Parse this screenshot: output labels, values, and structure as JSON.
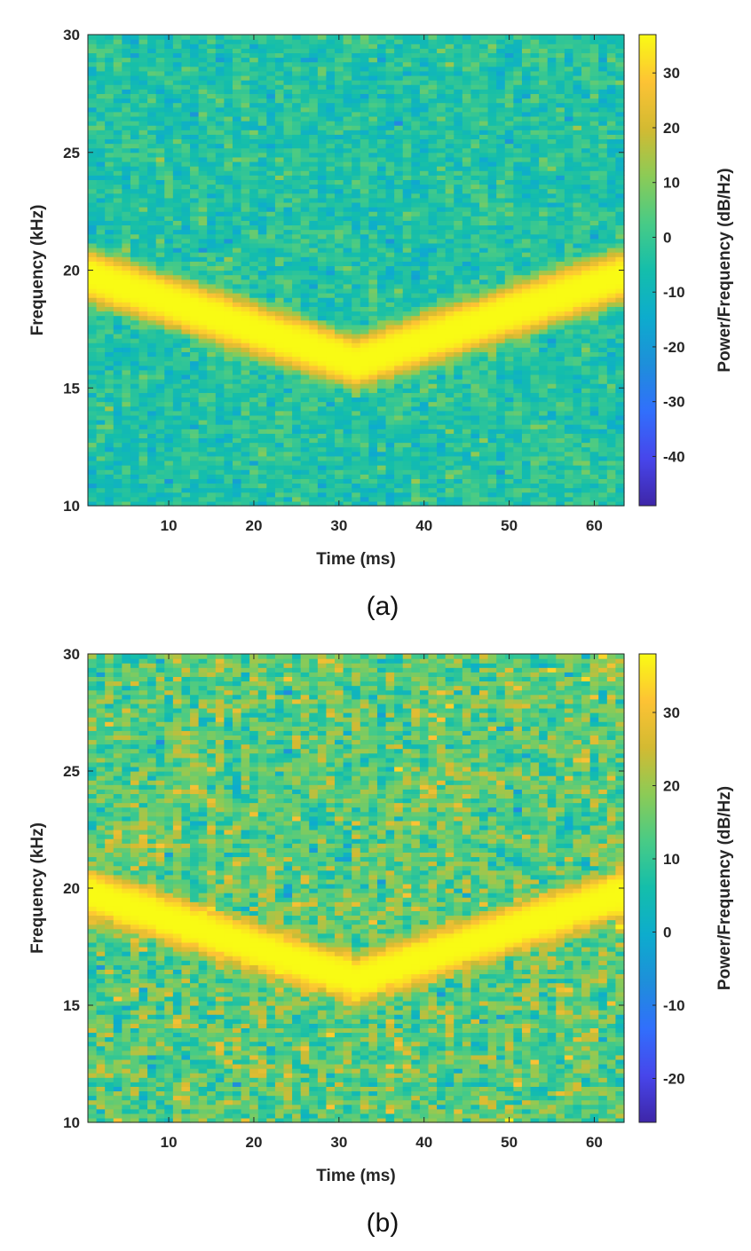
{
  "chart_data": [
    {
      "type": "heatmap",
      "panel_label": "(a)",
      "xlabel": "Time (ms)",
      "ylabel": "Frequency (kHz)",
      "colorbar_label": "Power/Frequency (dB/Hz)",
      "xlim": [
        0.5,
        63.5
      ],
      "ylim": [
        10,
        30
      ],
      "x_ticks": [
        10,
        20,
        30,
        40,
        50,
        60
      ],
      "y_ticks": [
        10,
        15,
        20,
        25,
        30
      ],
      "clim": [
        -49,
        37
      ],
      "colorbar_ticks": [
        30,
        20,
        10,
        0,
        -10,
        -20,
        -30,
        -40
      ],
      "colormap": "parula",
      "background_level_db": -4,
      "noise_spread_db": 6,
      "signal": {
        "shape": "V-shaped frequency sweep",
        "points": [
          {
            "x": 0.5,
            "y": 19.8
          },
          {
            "x": 32,
            "y": 16.1
          },
          {
            "x": 63.5,
            "y": 19.8
          }
        ],
        "half_width_khz": 1.2,
        "peak_db": 37
      }
    },
    {
      "type": "heatmap",
      "panel_label": "(b)",
      "xlabel": "Time (ms)",
      "ylabel": "Frequency (kHz)",
      "colorbar_label": "Power/Frequency (dB/Hz)",
      "xlim": [
        0.5,
        63.5
      ],
      "ylim": [
        10,
        30
      ],
      "x_ticks": [
        10,
        20,
        30,
        40,
        50,
        60
      ],
      "y_ticks": [
        10,
        15,
        20,
        25,
        30
      ],
      "clim": [
        -26,
        38
      ],
      "colorbar_ticks": [
        30,
        20,
        10,
        0,
        -10,
        -20
      ],
      "colormap": "parula",
      "background_level_db": 14,
      "noise_spread_db": 7,
      "signal": {
        "shape": "V-shaped frequency sweep",
        "points": [
          {
            "x": 0.5,
            "y": 19.8
          },
          {
            "x": 32,
            "y": 16.1
          },
          {
            "x": 63.5,
            "y": 19.8
          }
        ],
        "half_width_khz": 1.1,
        "peak_db": 38
      }
    }
  ]
}
